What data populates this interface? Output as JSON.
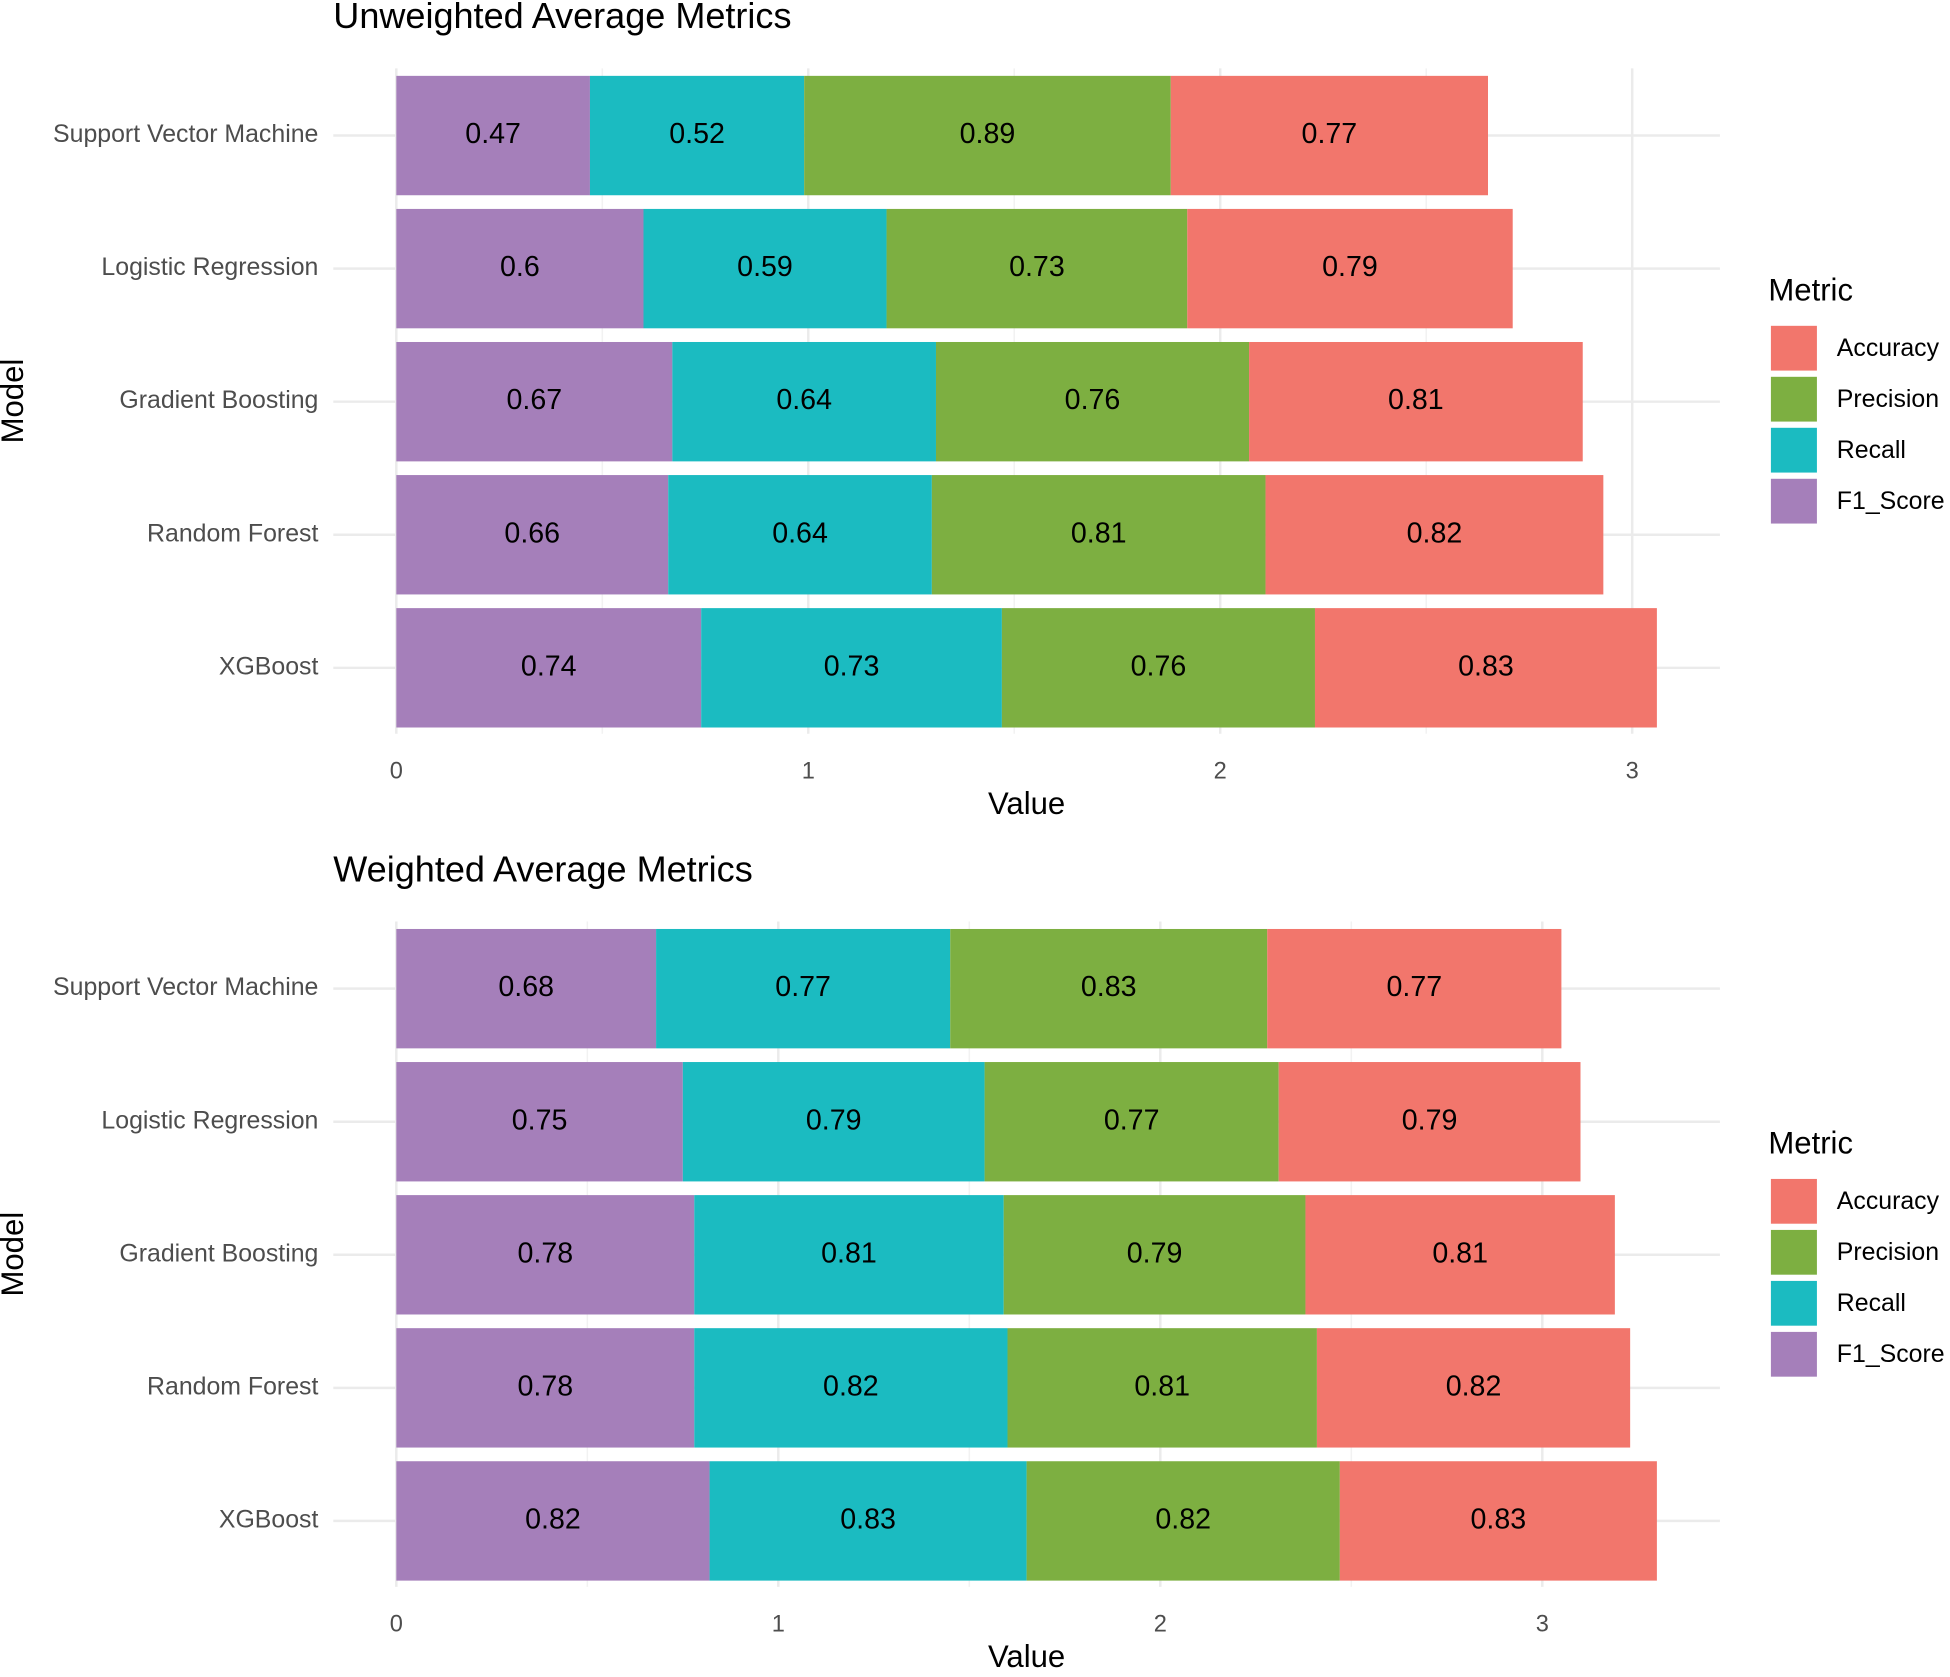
{
  "chart_data": [
    {
      "type": "stacked_bar_horizontal",
      "title": "Unweighted Average Metrics",
      "x_label": "Value",
      "y_label": "Model",
      "legend_title": "Metric",
      "categories": [
        "Support Vector Machine",
        "Logistic Regression",
        "Gradient Boosting",
        "Random Forest",
        "XGBoost"
      ],
      "series": [
        {
          "name": "Accuracy",
          "color": "#f2766c",
          "values": [
            0.77,
            0.79,
            0.81,
            0.82,
            0.83
          ]
        },
        {
          "name": "Precision",
          "color": "#7daf41",
          "values": [
            0.89,
            0.73,
            0.76,
            0.81,
            0.76
          ]
        },
        {
          "name": "Recall",
          "color": "#1bbbc1",
          "values": [
            0.52,
            0.59,
            0.64,
            0.64,
            0.73
          ]
        },
        {
          "name": "F1_Score",
          "color": "#a57fba",
          "values": [
            0.47,
            0.6,
            0.67,
            0.66,
            0.74
          ]
        }
      ],
      "xlim": [
        -0.153,
        3.213
      ],
      "xticks": [
        0,
        1,
        2,
        3
      ],
      "grid": true
    },
    {
      "type": "stacked_bar_horizontal",
      "title": "Weighted Average Metrics",
      "x_label": "Value",
      "y_label": "Model",
      "legend_title": "Metric",
      "categories": [
        "Support Vector Machine",
        "Logistic Regression",
        "Gradient Boosting",
        "Random Forest",
        "XGBoost"
      ],
      "series": [
        {
          "name": "Accuracy",
          "color": "#f2766c",
          "values": [
            0.77,
            0.79,
            0.81,
            0.82,
            0.83
          ]
        },
        {
          "name": "Precision",
          "color": "#7daf41",
          "values": [
            0.83,
            0.77,
            0.79,
            0.81,
            0.82
          ]
        },
        {
          "name": "Recall",
          "color": "#1bbbc1",
          "values": [
            0.77,
            0.79,
            0.81,
            0.82,
            0.83
          ]
        },
        {
          "name": "F1_Score",
          "color": "#a57fba",
          "values": [
            0.68,
            0.75,
            0.78,
            0.78,
            0.82
          ]
        }
      ],
      "xlim": [
        -0.165,
        3.465
      ],
      "xticks": [
        0,
        1,
        2,
        3
      ],
      "grid": true
    }
  ]
}
